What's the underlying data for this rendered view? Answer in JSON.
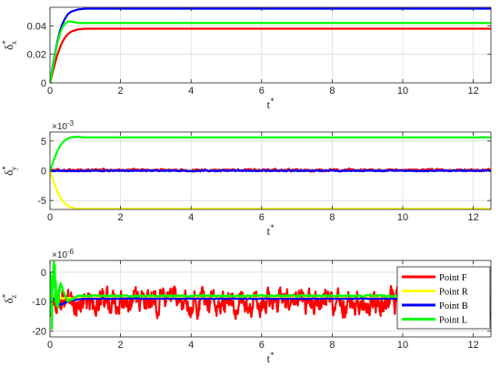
{
  "chart_data": [
    {
      "type": "line",
      "xlabel": "t*",
      "ylabel": "δ*x",
      "xlim": [
        0,
        12.5
      ],
      "ylim": [
        0,
        0.053
      ],
      "x_ticks": [
        0,
        2,
        4,
        6,
        8,
        10,
        12
      ],
      "y_ticks": [
        0,
        0.02,
        0.04
      ],
      "y_tick_labels": [
        "0",
        "0.02",
        "0.04"
      ],
      "grid": true,
      "series": [
        {
          "name": "Point F",
          "color": "#ff0000",
          "x": [
            0,
            0.1,
            0.2,
            0.3,
            0.4,
            0.5,
            0.6,
            0.8,
            1.0,
            1.5,
            12.5
          ],
          "y": [
            0,
            0.01,
            0.019,
            0.026,
            0.031,
            0.034,
            0.036,
            0.0375,
            0.038,
            0.038,
            0.038
          ]
        },
        {
          "name": "Point R",
          "color": "#ffff00",
          "x": [],
          "y": []
        },
        {
          "name": "Point B",
          "color": "#0000ff",
          "x": [
            0,
            0.1,
            0.2,
            0.3,
            0.4,
            0.5,
            0.6,
            0.8,
            1.0,
            1.5,
            12.5
          ],
          "y": [
            0,
            0.015,
            0.028,
            0.038,
            0.044,
            0.048,
            0.05,
            0.0515,
            0.052,
            0.052,
            0.052
          ]
        },
        {
          "name": "Point L",
          "color": "#00ff00",
          "x": [
            0,
            0.1,
            0.2,
            0.3,
            0.4,
            0.5,
            0.6,
            0.8,
            1.0,
            1.5,
            12.5
          ],
          "y": [
            0,
            0.014,
            0.027,
            0.036,
            0.041,
            0.043,
            0.043,
            0.042,
            0.042,
            0.042,
            0.042
          ]
        }
      ]
    },
    {
      "type": "line",
      "xlabel": "t*",
      "ylabel": "δ*y",
      "exponent": "×10-3",
      "xlim": [
        0,
        12.5
      ],
      "ylim": [
        -6.5,
        6.5
      ],
      "x_ticks": [
        0,
        2,
        4,
        6,
        8,
        10,
        12
      ],
      "y_ticks": [
        -5,
        0,
        5
      ],
      "y_tick_labels": [
        "-5",
        "0",
        "5"
      ],
      "grid": true,
      "series": [
        {
          "name": "Point F",
          "color": "#ff0000",
          "x": [
            0,
            12.5
          ],
          "y": [
            0.1,
            0.1
          ],
          "noise_amplitude": 0.35
        },
        {
          "name": "Point R",
          "color": "#ffff00",
          "x": [
            0,
            0.1,
            0.2,
            0.3,
            0.4,
            0.5,
            0.6,
            0.8,
            1.0,
            12.5
          ],
          "y": [
            0,
            -1.8,
            -3.4,
            -4.6,
            -5.4,
            -5.9,
            -6.2,
            -6.4,
            -6.4,
            -6.4
          ]
        },
        {
          "name": "Point B",
          "color": "#0000ff",
          "x": [
            0,
            12.5
          ],
          "y": [
            0.0,
            0.0
          ],
          "noise_amplitude": 0.15
        },
        {
          "name": "Point L",
          "color": "#00ff00",
          "x": [
            0,
            0.1,
            0.2,
            0.3,
            0.4,
            0.5,
            0.6,
            0.8,
            1.0,
            12.5
          ],
          "y": [
            0,
            1.7,
            3.2,
            4.3,
            5.0,
            5.4,
            5.6,
            5.7,
            5.6,
            5.6
          ]
        }
      ]
    },
    {
      "type": "line",
      "xlabel": "t*",
      "ylabel": "δ*z",
      "exponent": "×10-6",
      "xlim": [
        0,
        12.5
      ],
      "ylim": [
        -22,
        4
      ],
      "x_ticks": [
        0,
        2,
        4,
        6,
        8,
        10,
        12
      ],
      "y_ticks": [
        -20,
        -10,
        0
      ],
      "y_tick_labels": [
        "-20",
        "-10",
        "0"
      ],
      "grid": true,
      "series": [
        {
          "name": "Point F",
          "color": "#ff0000",
          "x": [
            0,
            12.5
          ],
          "y": [
            -10,
            -10
          ],
          "noise_amplitude": 7.5
        },
        {
          "name": "Point R",
          "color": "#ffff00",
          "x": [
            0,
            0.3,
            12.5
          ],
          "y": [
            -8,
            -8.8,
            -8.8
          ],
          "noise_amplitude": 0.5
        },
        {
          "name": "Point B",
          "color": "#0000ff",
          "x": [
            0,
            0.3,
            0.6,
            1.0,
            12.5
          ],
          "y": [
            -8,
            -11,
            -9.5,
            -9.0,
            -9.0
          ],
          "noise_amplitude": 0.2
        },
        {
          "name": "Point L",
          "color": "#00ff00",
          "x": [
            0,
            0.05,
            0.1,
            0.2,
            0.3,
            0.5,
            0.8,
            12.5
          ],
          "y": [
            0,
            -14,
            3,
            -12,
            -4,
            -10,
            -8,
            -8.0
          ],
          "noise_amplitude": 0.4,
          "initial_oscillation": true
        }
      ],
      "legend": {
        "placement": "right",
        "entries": [
          {
            "label": "Point F",
            "color": "#ff0000"
          },
          {
            "label": "Point R",
            "color": "#ffff00"
          },
          {
            "label": "Point B",
            "color": "#0000ff"
          },
          {
            "label": "Point L",
            "color": "#00ff00"
          }
        ]
      }
    }
  ]
}
